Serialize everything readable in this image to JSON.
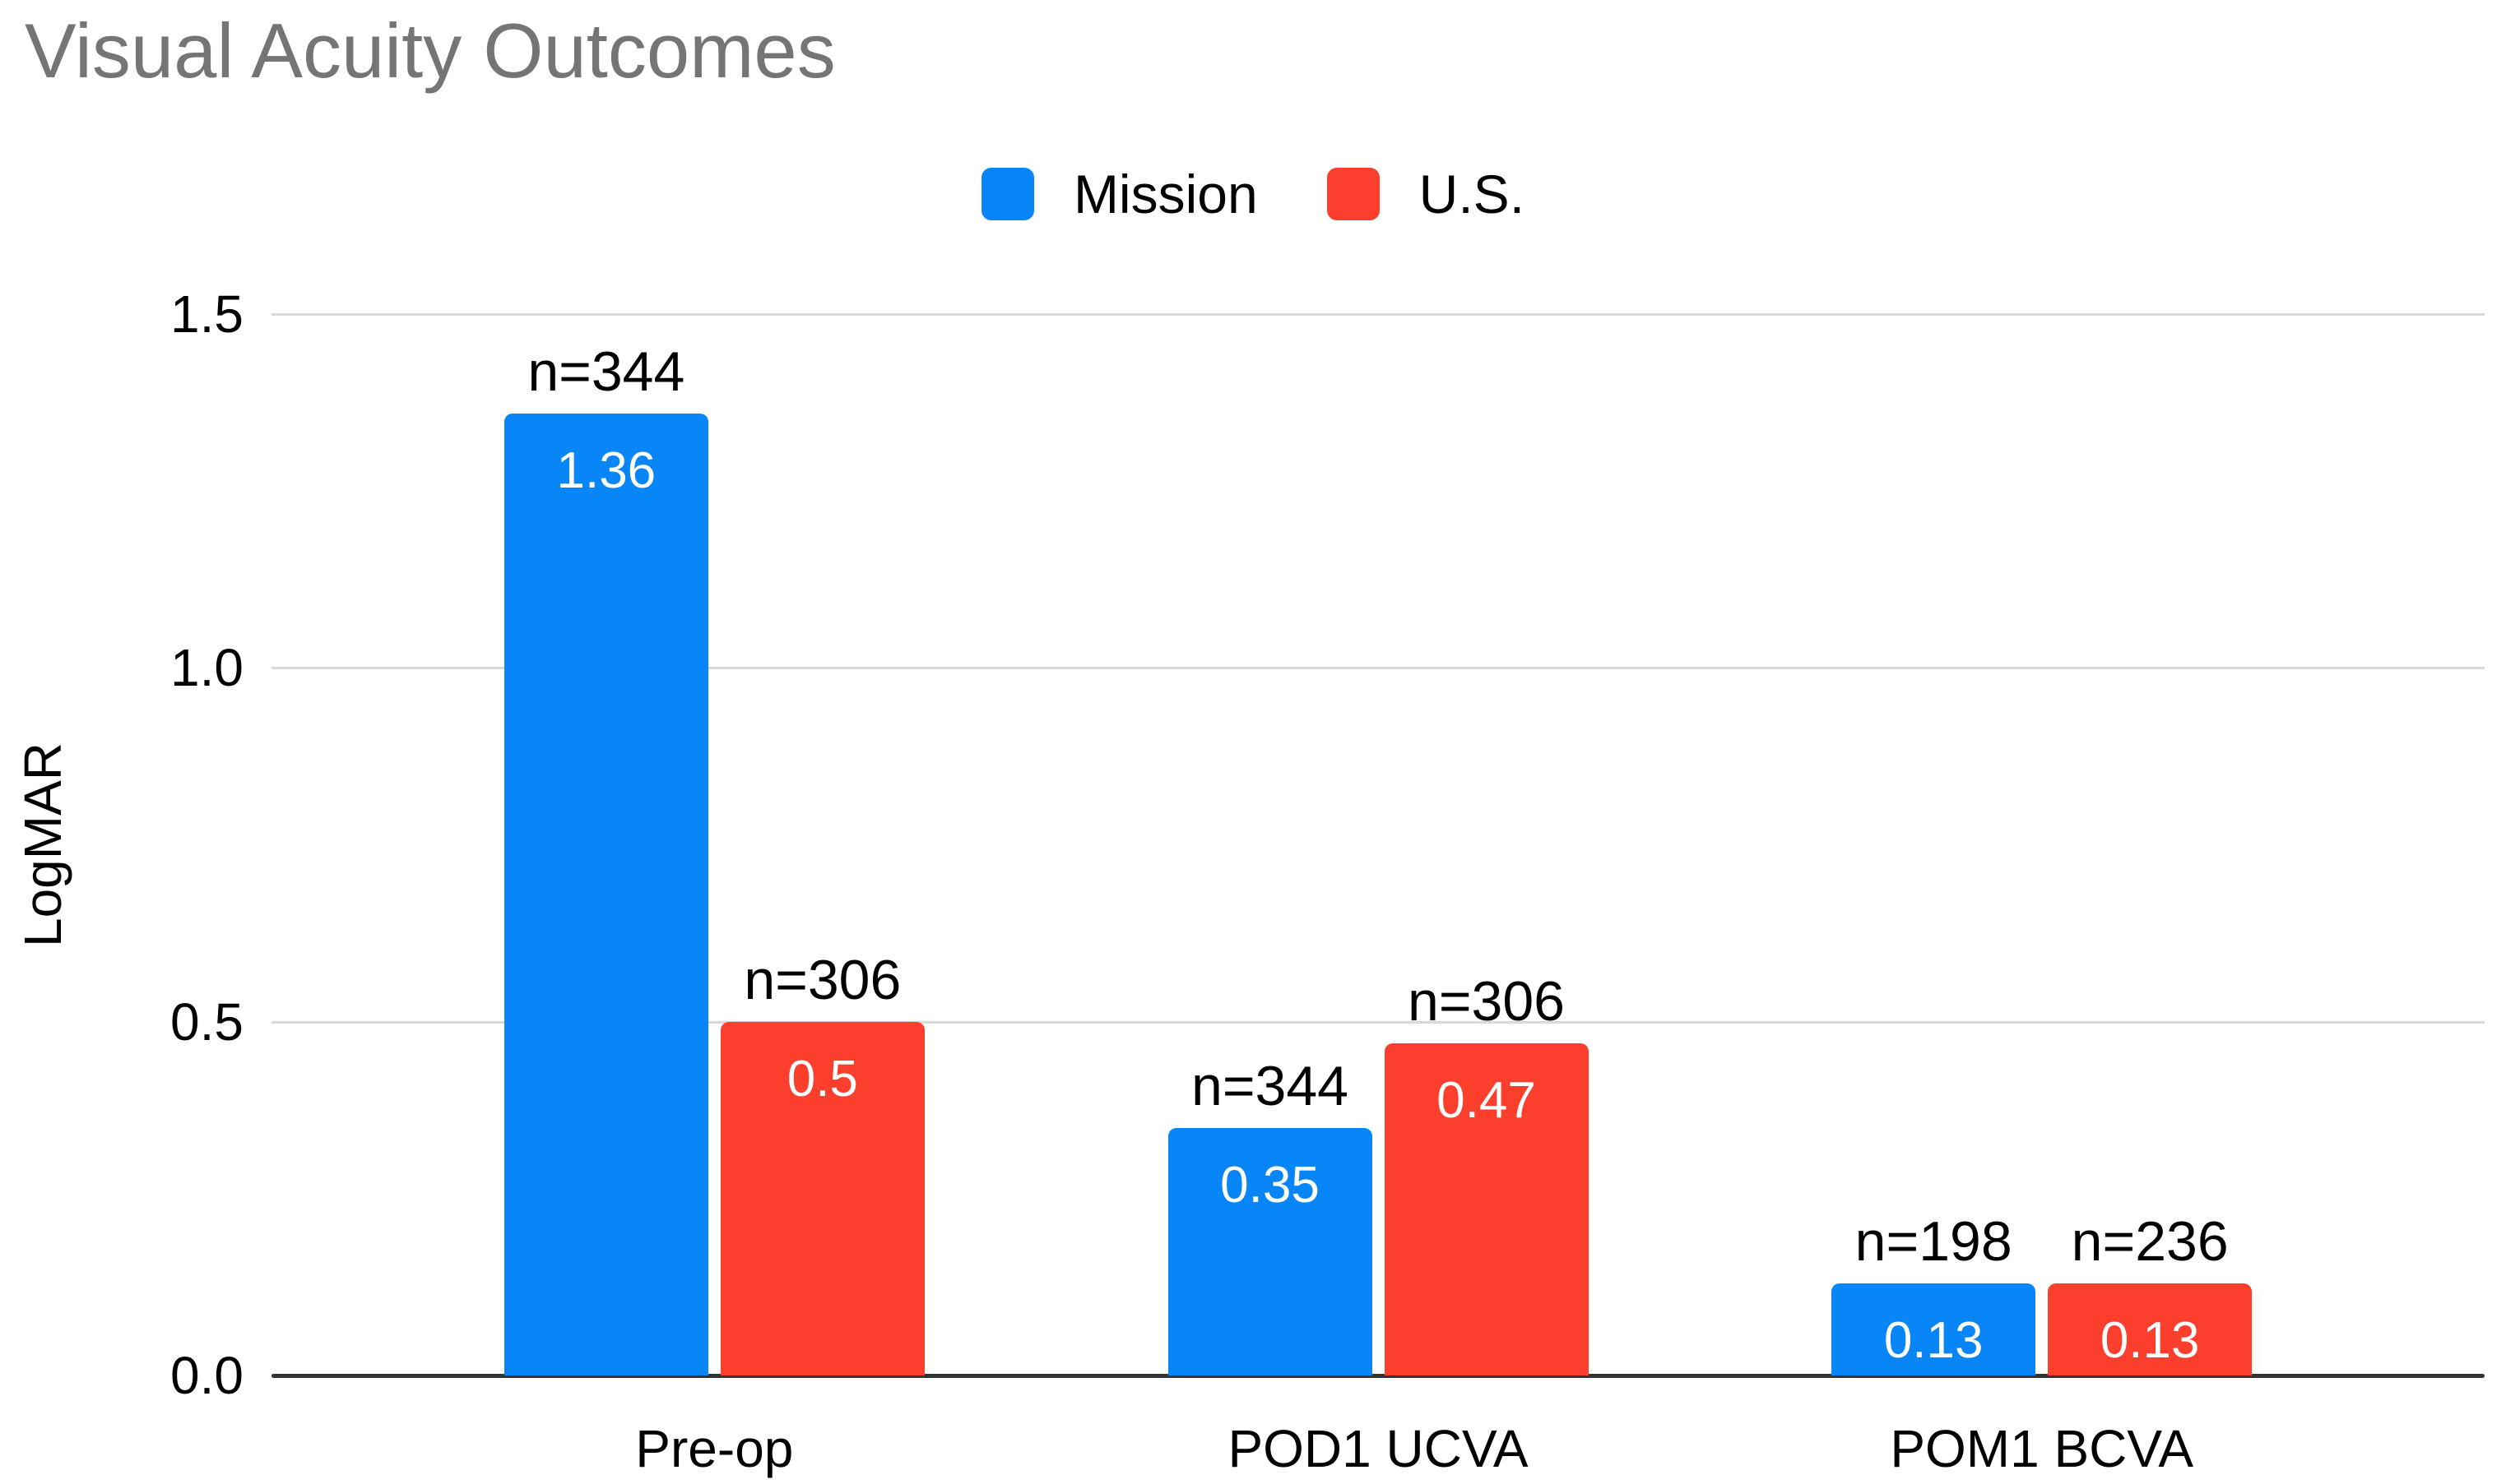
{
  "chart_data": {
    "type": "bar",
    "title": "Visual Acuity Outcomes",
    "xlabel": "",
    "ylabel": "LogMAR",
    "categories": [
      "Pre-op",
      "POD1 UCVA",
      "POM1 BCVA"
    ],
    "series": [
      {
        "name": "Mission",
        "color": "#0886f8",
        "values": [
          1.36,
          0.35,
          0.13
        ],
        "value_labels": [
          "1.36",
          "0.35",
          "0.13"
        ],
        "n_labels": [
          "n=344",
          "n=344",
          "n=198"
        ]
      },
      {
        "name": "U.S.",
        "color": "#fc3e2c",
        "values": [
          0.5,
          0.47,
          0.13
        ],
        "value_labels": [
          "0.5",
          "0.47",
          "0.13"
        ],
        "n_labels": [
          "n=306",
          "n=306",
          "n=236"
        ]
      }
    ],
    "yticks": [
      {
        "label": "1.5",
        "value": 1.5
      },
      {
        "label": "1.0",
        "value": 1.0
      },
      {
        "label": "0.5",
        "value": 0.5
      },
      {
        "label": "0.0",
        "value": 0.0
      }
    ],
    "ylim": [
      0,
      1.5
    ],
    "grid": true,
    "legend_position": "top",
    "colors": {
      "title_text": "#757575",
      "gridline": "#d9d9d9",
      "axis_line": "#333333",
      "label_text": "#000000",
      "bar_value_text": "#ffffff"
    }
  }
}
